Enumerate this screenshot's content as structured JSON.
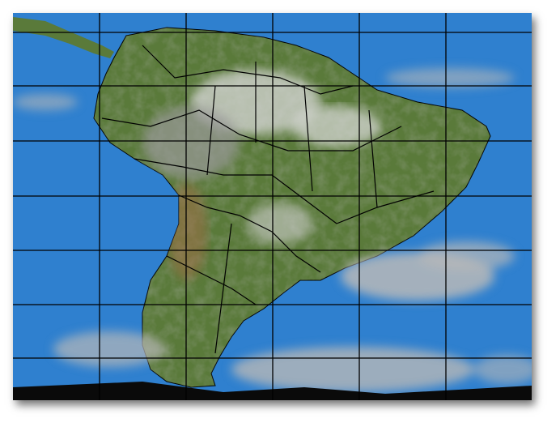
{
  "map": {
    "colors": {
      "ocean": "#2f80cf",
      "land": "#5a7a3a",
      "cloud": "#b8b8b8",
      "grid": "#000000",
      "borders": "#000000",
      "night": "#0a0a0a"
    }
  }
}
